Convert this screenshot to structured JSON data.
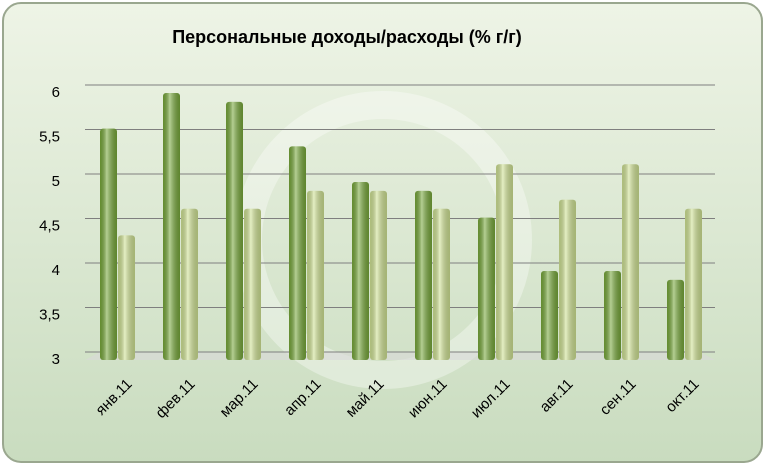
{
  "chart_data": {
    "type": "bar",
    "title": "Персональные доходы/расходы (% г/г)",
    "categories": [
      "янв.11",
      "фев.11",
      "мар.11",
      "апр.11",
      "май.11",
      "июн.11",
      "июл.11",
      "авг.11",
      "сен.11",
      "окт.11"
    ],
    "series": [
      {
        "color": "#77a83a",
        "values": [
          5.6,
          6.0,
          5.9,
          5.4,
          5.0,
          4.9,
          4.6,
          4.0,
          4.0,
          3.9
        ]
      },
      {
        "color": "#cfe293",
        "values": [
          4.4,
          4.7,
          4.7,
          4.9,
          4.9,
          4.7,
          5.2,
          4.8,
          5.2,
          4.7
        ]
      }
    ],
    "ylim": [
      3,
      6
    ],
    "yticks": [
      3,
      {
        "value": 3.5,
        "label": "3,5"
      },
      4,
      {
        "value": 4.5,
        "label": "4,5"
      },
      5,
      {
        "value": 5.5,
        "label": "5,5"
      },
      6
    ],
    "grid": true
  }
}
